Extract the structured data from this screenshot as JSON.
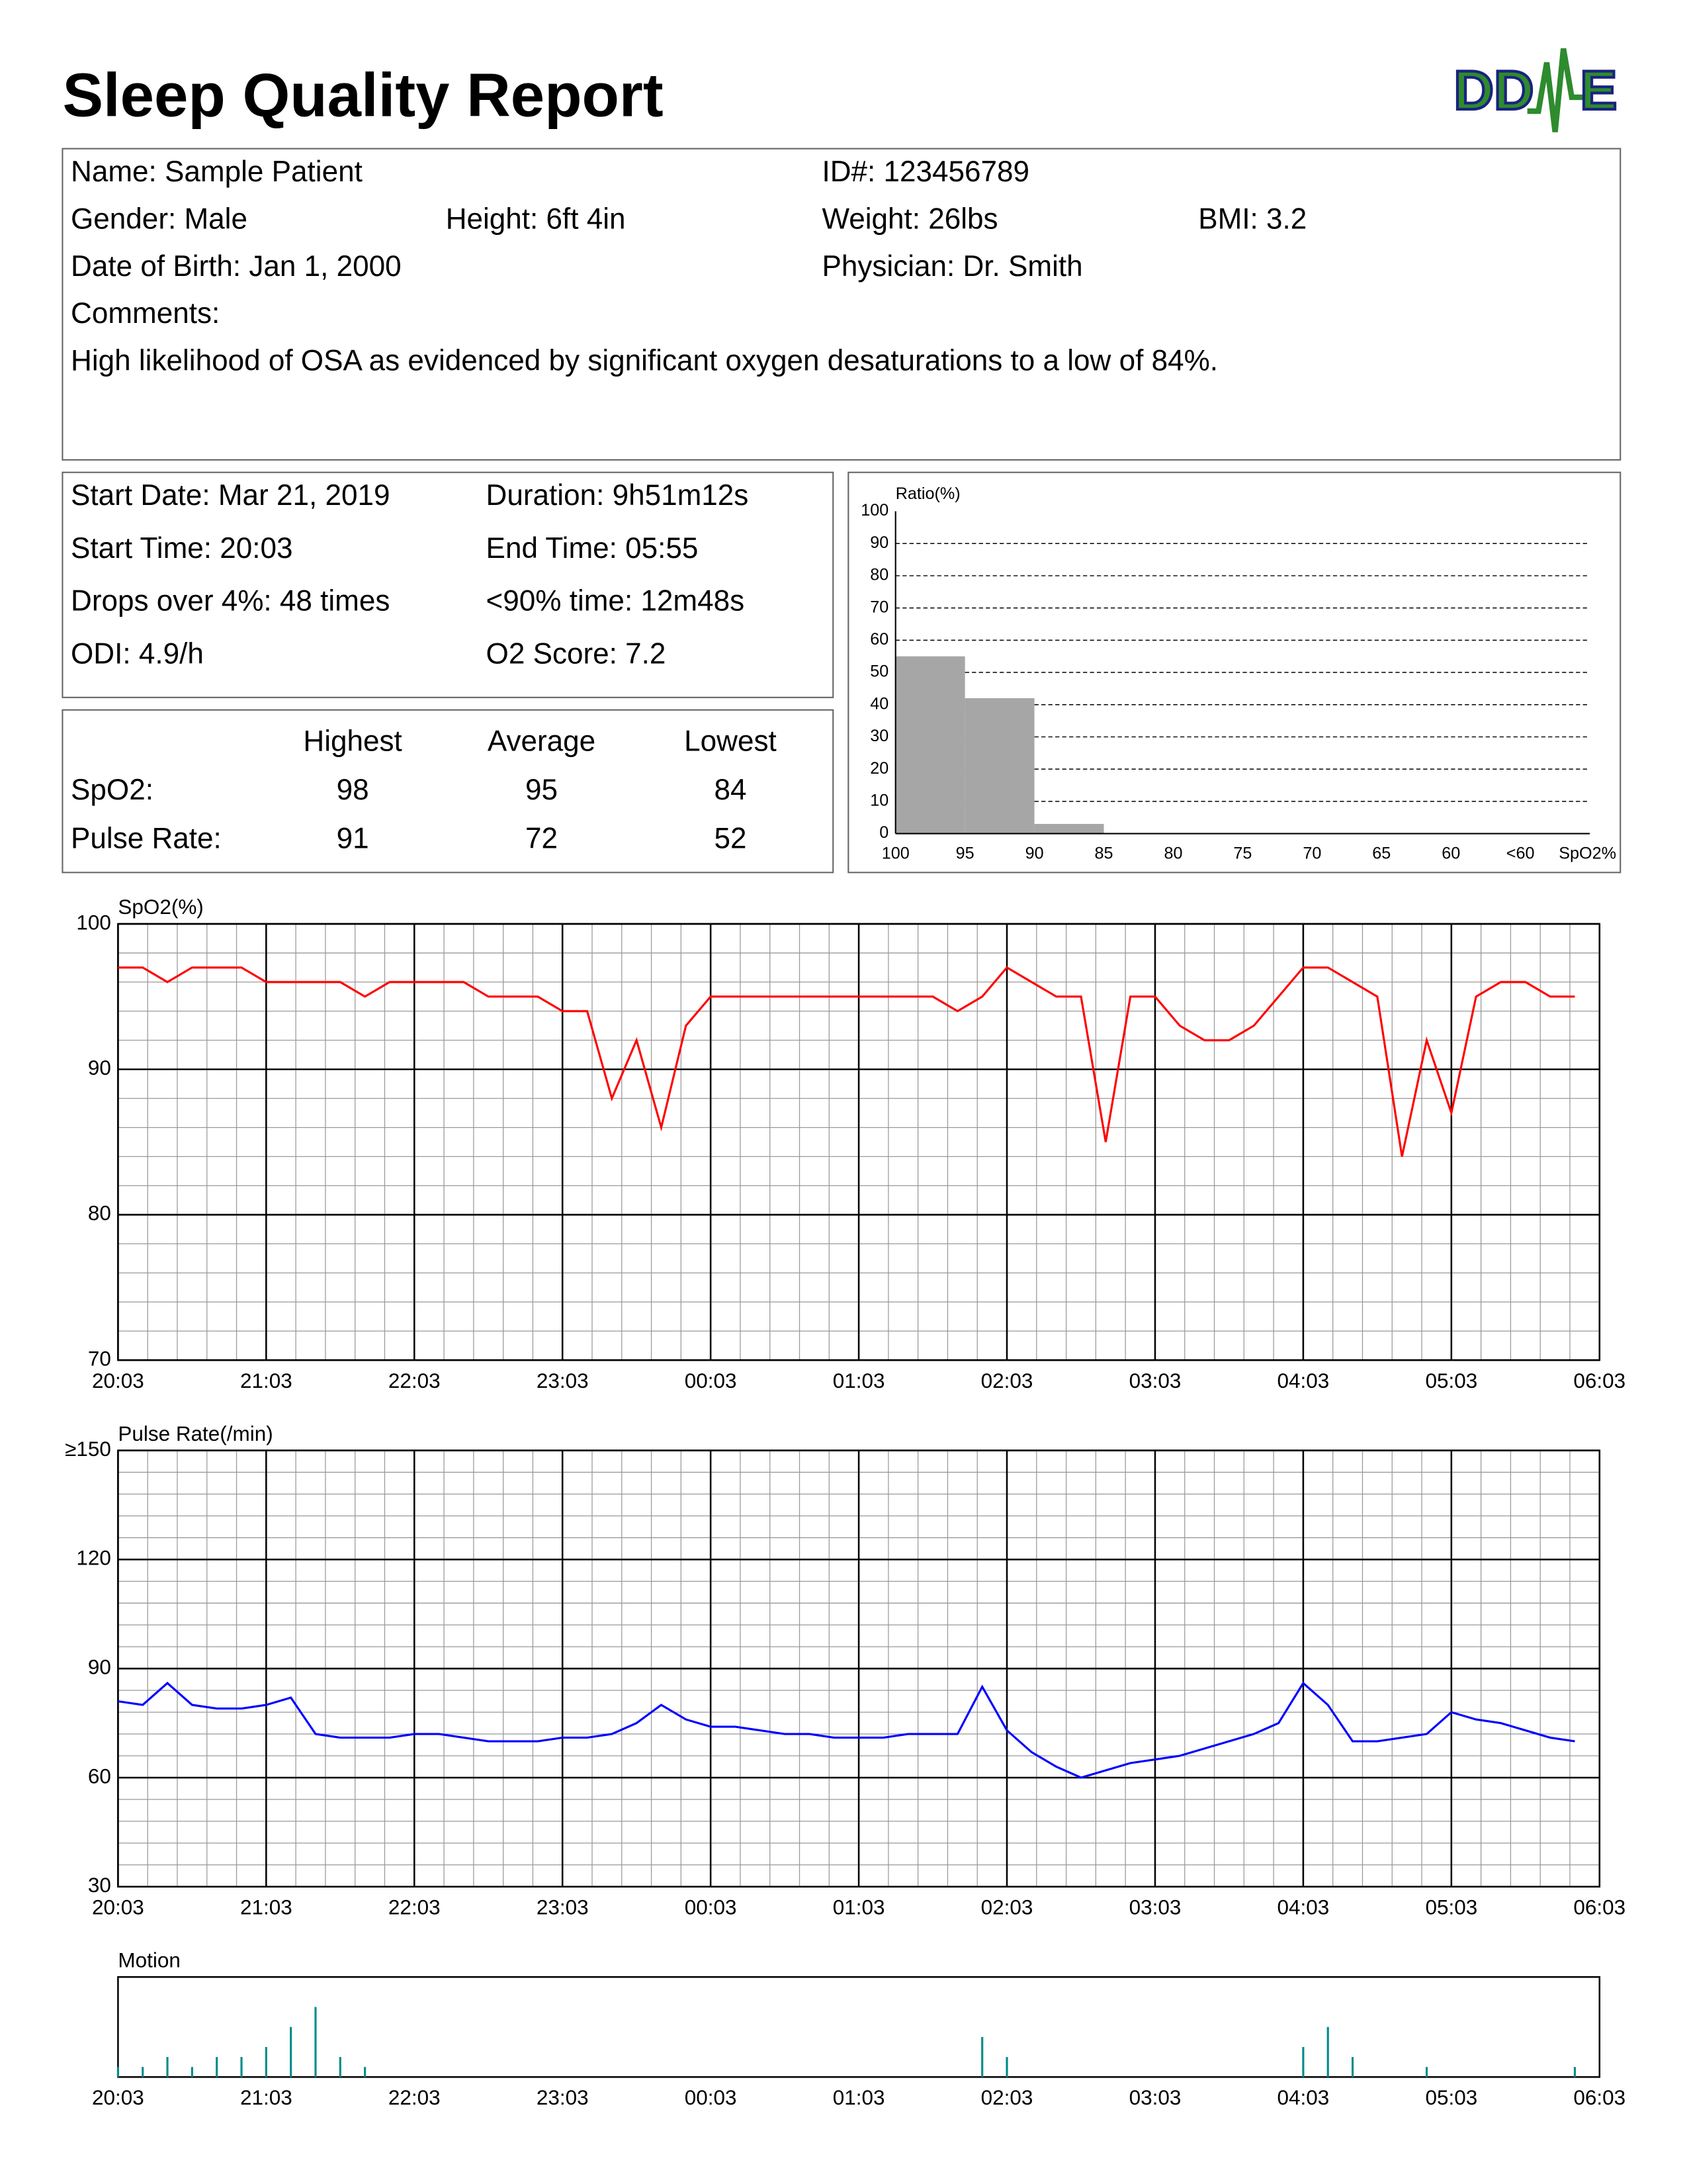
{
  "header": {
    "title": "Sleep Quality Report",
    "logo": [
      "DD",
      "E"
    ]
  },
  "patient": [
    [
      "Name: Sample Patient",
      "ID#: 123456789"
    ],
    [
      "Gender: Male",
      "Height: 6ft 4in",
      "Weight: 26lbs",
      "BMI: 3.2"
    ],
    [
      "Date of Birth: Jan 1, 2000",
      "Physician: Dr. Smith"
    ],
    [
      "Comments:"
    ],
    [
      "High likelihood of OSA as evidenced by significant oxygen desaturations to a low of 84%."
    ]
  ],
  "summary": [
    [
      "Start Date: Mar 21, 2019",
      "Duration: 9h51m12s"
    ],
    [
      "Start Time: 20:03",
      "End Time: 05:55"
    ],
    [
      "Drops over 4%: 48 times",
      "<90% time: 12m48s"
    ],
    [
      "ODI: 4.9/h",
      "O2 Score: 7.2"
    ]
  ],
  "stats": {
    "columns": [
      "Highest",
      "Average",
      "Lowest"
    ],
    "rows": [
      {
        "label": "SpO2:",
        "values": [
          98,
          95,
          84
        ]
      },
      {
        "label": "Pulse Rate:",
        "values": [
          91,
          72,
          52
        ]
      }
    ]
  },
  "chart_data": [
    {
      "type": "histogram",
      "ylabel": "Ratio(%)",
      "xlabel": "SpO2%",
      "color": "#a6a6a6",
      "bins": [
        100,
        95,
        90,
        85,
        80,
        75,
        70,
        65,
        60,
        {
          "value": 55,
          "label": "<60"
        }
      ],
      "values": [
        55,
        42,
        3,
        0,
        0,
        0,
        0,
        0,
        0
      ],
      "xlim": [
        100,
        55
      ],
      "ylim": [
        0,
        100
      ],
      "yticks": [
        0,
        10,
        20,
        30,
        40,
        50,
        60,
        70,
        80,
        90,
        100
      ],
      "grid": "dashed"
    },
    {
      "type": "line",
      "ylabel": "SpO2(%)",
      "color": "#ff0000",
      "minor_divisions": 5,
      "x": [
        0,
        10,
        20,
        30,
        40,
        50,
        60,
        70,
        80,
        90,
        100,
        110,
        120,
        130,
        140,
        150,
        160,
        170,
        180,
        190,
        200,
        210,
        220,
        230,
        240,
        250,
        260,
        270,
        280,
        290,
        300,
        310,
        320,
        330,
        340,
        350,
        360,
        370,
        380,
        390,
        400,
        410,
        420,
        430,
        440,
        450,
        460,
        470,
        480,
        490,
        500,
        510,
        520,
        530,
        540,
        550,
        560,
        570,
        580,
        590
      ],
      "values": [
        97,
        97,
        96,
        97,
        97,
        97,
        96,
        96,
        96,
        96,
        95,
        96,
        96,
        96,
        96,
        95,
        95,
        95,
        94,
        94,
        88,
        92,
        86,
        93,
        95,
        95,
        95,
        95,
        95,
        95,
        95,
        95,
        95,
        95,
        94,
        95,
        97,
        96,
        95,
        95,
        85,
        95,
        95,
        93,
        92,
        92,
        93,
        95,
        97,
        97,
        96,
        95,
        84,
        92,
        87,
        95,
        96,
        96,
        95,
        95
      ],
      "xlim": [
        0,
        600
      ],
      "xticks": [
        {
          "value": 0,
          "label": "20:03"
        },
        {
          "value": 60,
          "label": "21:03"
        },
        {
          "value": 120,
          "label": "22:03"
        },
        {
          "value": 180,
          "label": "23:03"
        },
        {
          "value": 240,
          "label": "00:03"
        },
        {
          "value": 300,
          "label": "01:03"
        },
        {
          "value": 360,
          "label": "02:03"
        },
        {
          "value": 420,
          "label": "03:03"
        },
        {
          "value": 480,
          "label": "04:03"
        },
        {
          "value": 540,
          "label": "05:03"
        },
        {
          "value": 600,
          "label": "06:03"
        }
      ],
      "ylim": [
        70,
        100
      ],
      "yticks": [
        70,
        80,
        90,
        100
      ],
      "grid": true
    },
    {
      "type": "line",
      "ylabel": "Pulse Rate(/min)",
      "color": "#0000ff",
      "minor_divisions": 5,
      "x": [
        0,
        10,
        20,
        30,
        40,
        50,
        60,
        70,
        80,
        90,
        100,
        110,
        120,
        130,
        140,
        150,
        160,
        170,
        180,
        190,
        200,
        210,
        220,
        230,
        240,
        250,
        260,
        270,
        280,
        290,
        300,
        310,
        320,
        330,
        340,
        350,
        360,
        370,
        380,
        390,
        400,
        410,
        420,
        430,
        440,
        450,
        460,
        470,
        480,
        490,
        500,
        510,
        520,
        530,
        540,
        550,
        560,
        570,
        580,
        590
      ],
      "values": [
        81,
        80,
        86,
        80,
        79,
        79,
        80,
        82,
        72,
        71,
        71,
        71,
        72,
        72,
        71,
        70,
        70,
        70,
        71,
        71,
        72,
        75,
        80,
        76,
        74,
        74,
        73,
        72,
        72,
        71,
        71,
        71,
        72,
        72,
        72,
        85,
        73,
        67,
        63,
        60,
        62,
        64,
        65,
        66,
        68,
        70,
        72,
        75,
        86,
        80,
        70,
        70,
        71,
        72,
        78,
        76,
        75,
        73,
        71,
        70
      ],
      "xlim": [
        0,
        600
      ],
      "xticks": [
        {
          "value": 0,
          "label": "20:03"
        },
        {
          "value": 60,
          "label": "21:03"
        },
        {
          "value": 120,
          "label": "22:03"
        },
        {
          "value": 180,
          "label": "23:03"
        },
        {
          "value": 240,
          "label": "00:03"
        },
        {
          "value": 300,
          "label": "01:03"
        },
        {
          "value": 360,
          "label": "02:03"
        },
        {
          "value": 420,
          "label": "03:03"
        },
        {
          "value": 480,
          "label": "04:03"
        },
        {
          "value": 540,
          "label": "05:03"
        },
        {
          "value": 600,
          "label": "06:03"
        }
      ],
      "ylim": [
        30,
        150
      ],
      "yticks": [
        30,
        60,
        90,
        120,
        {
          "value": 150,
          "label": "≥150"
        }
      ],
      "grid": true
    },
    {
      "type": "spikes",
      "ylabel": "Motion",
      "color": "#008b8b",
      "x": [
        0,
        10,
        20,
        30,
        40,
        50,
        60,
        70,
        80,
        90,
        100,
        110,
        120,
        130,
        140,
        150,
        160,
        170,
        180,
        190,
        200,
        210,
        220,
        230,
        240,
        250,
        260,
        270,
        280,
        290,
        300,
        310,
        320,
        330,
        340,
        350,
        360,
        370,
        380,
        390,
        400,
        410,
        420,
        430,
        440,
        450,
        460,
        470,
        480,
        490,
        500,
        510,
        520,
        530,
        540,
        550,
        560,
        570,
        580,
        590
      ],
      "values": [
        1,
        1,
        2,
        1,
        2,
        2,
        3,
        5,
        7,
        2,
        1,
        0,
        0,
        0,
        0,
        0,
        0,
        0,
        0,
        0,
        0,
        0,
        0,
        0,
        0,
        0,
        0,
        0,
        0,
        0,
        0,
        0,
        0,
        0,
        0,
        4,
        2,
        0,
        0,
        0,
        0,
        0,
        0,
        0,
        0,
        0,
        0,
        0,
        3,
        5,
        2,
        0,
        0,
        1,
        0,
        0,
        0,
        0,
        0,
        1
      ],
      "xlim": [
        0,
        600
      ],
      "xticks": [
        {
          "value": 0,
          "label": "20:03"
        },
        {
          "value": 60,
          "label": "21:03"
        },
        {
          "value": 120,
          "label": "22:03"
        },
        {
          "value": 180,
          "label": "23:03"
        },
        {
          "value": 240,
          "label": "00:03"
        },
        {
          "value": 300,
          "label": "01:03"
        },
        {
          "value": 360,
          "label": "02:03"
        },
        {
          "value": 420,
          "label": "03:03"
        },
        {
          "value": 480,
          "label": "04:03"
        },
        {
          "value": 540,
          "label": "05:03"
        },
        {
          "value": 600,
          "label": "06:03"
        }
      ],
      "ylim": [
        0,
        10
      ]
    }
  ]
}
